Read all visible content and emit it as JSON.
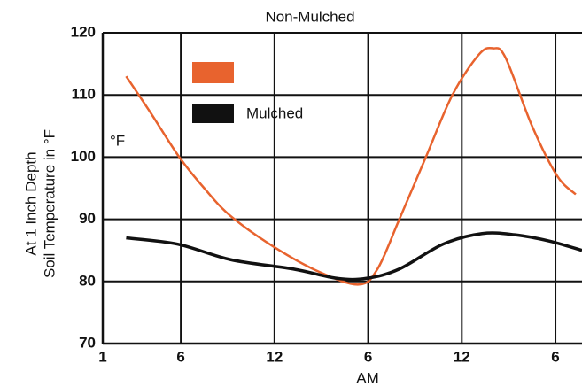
{
  "chart_data": {
    "type": "line",
    "series": [
      {
        "name": "Non-Mulched",
        "color": "#e8632e",
        "x": [
          2.5,
          4.1,
          5.9,
          7.5,
          9.2,
          12,
          14.9,
          17.4,
          18.6,
          20,
          21.7,
          23.4,
          25.1,
          26,
          26.8,
          28.5,
          30.1,
          31.3
        ],
        "values": [
          113,
          107,
          100,
          95,
          90.5,
          85.5,
          81.5,
          79.5,
          82,
          90,
          100,
          110,
          116.5,
          117.5,
          116,
          105,
          97,
          94
        ]
      },
      {
        "name": "Mulched",
        "color": "#111111",
        "x": [
          2.5,
          5.8,
          9.2,
          13.2,
          16,
          17.9,
          20,
          22.8,
          25.3,
          27.4,
          29.6,
          31.7
        ],
        "values": [
          87,
          86,
          83.5,
          82,
          80.5,
          80.5,
          82,
          86,
          87.7,
          87.5,
          86.5,
          85
        ]
      }
    ],
    "ylabel": [
      "At 1 Inch Depth",
      "Soil Temperature in °F"
    ],
    "unit_annotation": "°F",
    "xlabel": "AM",
    "xlim": [
      1,
      31.7
    ],
    "xticks": [
      1,
      6,
      12,
      {
        "value": 18,
        "label": "6"
      },
      {
        "value": 24,
        "label": "12"
      },
      {
        "value": 30,
        "label": "6"
      }
    ],
    "ylim": [
      70,
      120
    ],
    "yticks": [
      70,
      80,
      90,
      100,
      110,
      120
    ],
    "grid": true
  }
}
